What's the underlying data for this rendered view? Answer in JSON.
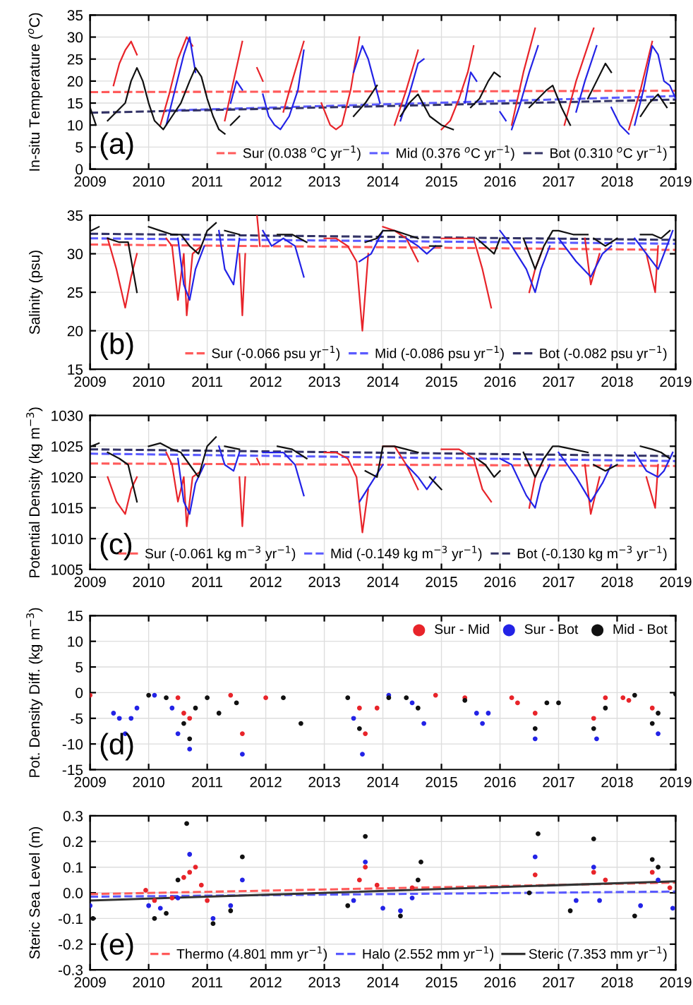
{
  "chart_data": [
    {
      "type": "line",
      "ylabel": "In-situ Temperature ($^{o}$C)",
      "xlim": [
        2009,
        2019
      ],
      "xticks": [
        2009,
        2010,
        2011,
        2012,
        2013,
        2014,
        2015,
        2016,
        2017,
        2018,
        2019
      ],
      "ylim": [
        0,
        35
      ],
      "yticks": [
        0,
        5,
        10,
        15,
        20,
        25,
        30,
        35
      ],
      "grid": true,
      "legend": "bottom right",
      "annotations": [
        "(a)"
      ],
      "series": [
        {
          "color": "#e8242a",
          "x": [
            2009.4,
            2009.5,
            2009.6,
            2009.7,
            2009.8,
            2010.0,
            2010.2,
            2010.35,
            2010.5,
            2010.65,
            2010.75,
            2011.0,
            2011.3,
            2011.45,
            2011.6,
            2011.75,
            2011.85,
            2011.95,
            2012.1,
            2012.3,
            2012.45,
            2012.65,
            2012.8,
            2012.95,
            2013.1,
            2013.2,
            2013.3,
            2013.45,
            2013.6,
            2013.8,
            2014.2,
            2014.4,
            2014.6,
            2014.8,
            2015.0,
            2015.15,
            2015.3,
            2015.45,
            2015.55,
            2015.8,
            2016.2,
            2016.4,
            2016.6,
            2016.8,
            2017.1,
            2017.3,
            2017.6,
            2017.8,
            2018.2,
            2018.4,
            2018.6
          ],
          "values": [
            19,
            24,
            27,
            29,
            26,
            null,
            10,
            17,
            25,
            30,
            28,
            null,
            11,
            20,
            29,
            null,
            23,
            20,
            null,
            13,
            20,
            29,
            null,
            15,
            10,
            9,
            10,
            18,
            30,
            null,
            10,
            18,
            27,
            null,
            9,
            11,
            16,
            22,
            28,
            null,
            10,
            22,
            32,
            null,
            10,
            20,
            32,
            null,
            9,
            18,
            29
          ]
        },
        {
          "color": "#2323e6",
          "x": [
            2010.3,
            2010.45,
            2010.6,
            2010.7,
            2010.8,
            2011.0,
            2011.4,
            2011.5,
            2011.6,
            2011.8,
            2011.95,
            2012.05,
            2012.15,
            2012.25,
            2012.4,
            2012.55,
            2012.65,
            2013.0,
            2013.5,
            2013.65,
            2013.75,
            2013.85,
            2013.95,
            2014.1,
            2014.3,
            2014.45,
            2014.6,
            2014.7,
            2015.0,
            2015.4,
            2015.5,
            2015.6,
            2015.9,
            2016.0,
            2016.1,
            2016.15,
            2016.2,
            2016.35,
            2016.5,
            2016.65,
            2017.0,
            2017.3,
            2017.45,
            2017.65,
            2017.8,
            2017.9,
            2018.05,
            2018.2,
            2018.25,
            2018.3,
            2018.45,
            2018.6,
            2018.7,
            2018.8,
            2018.9,
            2019.0
          ],
          "values": [
            10,
            18,
            26,
            30,
            22,
            null,
            15,
            20,
            18,
            null,
            17,
            12,
            10,
            9,
            12,
            18,
            27,
            null,
            22,
            28,
            25,
            20,
            15,
            null,
            11,
            17,
            24,
            25,
            null,
            15,
            22,
            20,
            null,
            13,
            11,
            null,
            9,
            15,
            22,
            28,
            null,
            13,
            20,
            28,
            null,
            14,
            10,
            8,
            null,
            10,
            18,
            28,
            26,
            20,
            19,
            16
          ]
        },
        {
          "color": "#111111",
          "x": [
            2009.0,
            2009.1,
            2009.2,
            2009.3,
            2009.45,
            2009.6,
            2009.7,
            2009.8,
            2009.9,
            2010.0,
            2010.1,
            2010.25,
            2010.4,
            2010.55,
            2010.7,
            2010.8,
            2010.9,
            2011.0,
            2011.1,
            2011.2,
            2011.3,
            2011.35,
            2011.4,
            2011.55,
            2013.0,
            2013.5,
            2013.7,
            2013.9,
            2014.1,
            2014.3,
            2014.45,
            2014.6,
            2014.8,
            2015.0,
            2015.2,
            2015.4,
            2015.5,
            2015.65,
            2015.8,
            2015.9,
            2016.0,
            2016.3,
            2016.5,
            2016.65,
            2016.8,
            2016.9,
            2017.05,
            2017.2,
            2017.4,
            2017.5,
            2017.65,
            2017.8,
            2017.9,
            2018.2,
            2018.4,
            2018.55,
            2018.7,
            2018.85
          ],
          "values": [
            14,
            10,
            null,
            11,
            13,
            15,
            20,
            23,
            20,
            15,
            11,
            9,
            12,
            15,
            20,
            23,
            21,
            16,
            12,
            9,
            8,
            null,
            10,
            12,
            null,
            12,
            15,
            19,
            null,
            12,
            15,
            17,
            12,
            10,
            9,
            null,
            14,
            16,
            20,
            22,
            21,
            null,
            14,
            16,
            18,
            19,
            14,
            10,
            null,
            16,
            20,
            24,
            22,
            null,
            12,
            15,
            17,
            14
          ]
        },
        {
          "name": "Sur (0.038 $^{o}$C yr$^{−1}$)",
          "color": "#ff5a5a",
          "line_style": "dashed",
          "x": [
            2009,
            2019
          ],
          "values": [
            17.5,
            17.8
          ]
        },
        {
          "name": "Mid (0.376 $^{o}$C yr$^{−1}$)",
          "color": "#5a5aff",
          "line_style": "dashed",
          "x": [
            2010.3,
            2019
          ],
          "values": [
            13.3,
            16.6
          ]
        },
        {
          "name": "Bot (0.310 $^{o}$C yr$^{−1}$)",
          "color": "#333366",
          "line_style": "dashed",
          "x": [
            2009,
            2019
          ],
          "values": [
            12.8,
            15.8
          ]
        }
      ]
    },
    {
      "type": "line",
      "ylabel": "Salinity (psu)",
      "xlim": [
        2009,
        2019
      ],
      "xticks": [
        2009,
        2010,
        2011,
        2012,
        2013,
        2014,
        2015,
        2016,
        2017,
        2018,
        2019
      ],
      "ylim": [
        15,
        35
      ],
      "yticks": [
        15,
        20,
        25,
        30,
        35
      ],
      "grid": true,
      "legend": "bottom right",
      "annotations": [
        "(b)"
      ],
      "series": [
        {
          "color": "#e8242a",
          "x": [
            2009.3,
            2009.45,
            2009.6,
            2009.7,
            2009.8,
            2010.1,
            2010.3,
            2010.4,
            2010.5,
            2010.6,
            2010.65,
            2010.75,
            2010.9,
            2011.4,
            2011.55,
            2011.6,
            2011.65,
            2011.75,
            2011.85,
            2011.9,
            2012.5,
            2013.0,
            2013.2,
            2013.4,
            2013.55,
            2013.65,
            2013.75,
            2013.9,
            2014.0,
            2014.2,
            2014.4,
            2014.6,
            2014.8,
            2015.0,
            2015.3,
            2015.55,
            2015.7,
            2015.85,
            2016.2,
            2016.5,
            2016.6,
            2016.7,
            2017.2,
            2017.45,
            2017.55,
            2017.7,
            2018.2,
            2018.5,
            2018.65,
            2018.7
          ],
          "values": [
            32,
            28,
            23,
            27,
            30,
            null,
            32,
            31,
            24,
            30,
            22,
            30,
            31,
            null,
            30,
            22,
            30,
            null,
            35,
            31,
            null,
            32,
            32,
            31,
            29,
            20,
            30,
            null,
            33.5,
            33,
            32,
            29,
            null,
            32,
            32,
            32,
            28,
            23,
            null,
            25,
            28,
            30,
            null,
            32,
            26,
            30,
            null,
            30,
            25,
            31
          ]
        },
        {
          "color": "#2323e6",
          "x": [
            2010.5,
            2010.6,
            2010.7,
            2010.8,
            2010.95,
            2011.1,
            2011.2,
            2011.3,
            2011.45,
            2011.55,
            2011.8,
            2011.95,
            2012.1,
            2012.3,
            2012.5,
            2012.65,
            2013.3,
            2013.6,
            2013.8,
            2014.0,
            2014.2,
            2014.4,
            2014.6,
            2014.75,
            2014.9,
            2015.5,
            2016.0,
            2016.2,
            2016.45,
            2016.6,
            2016.7,
            2016.85,
            2016.95,
            2017.0,
            2017.3,
            2017.55,
            2017.75,
            2017.9,
            2018.1,
            2018.3,
            2018.5,
            2018.7,
            2018.8,
            2018.95
          ],
          "values": [
            32,
            26,
            24,
            28,
            31,
            null,
            33,
            28,
            26,
            32,
            null,
            33,
            31,
            32,
            31,
            27,
            null,
            29,
            30,
            33,
            null,
            32,
            31,
            30,
            31,
            null,
            33,
            31,
            28,
            25,
            28,
            31,
            null,
            32,
            29,
            27,
            30,
            31,
            null,
            32,
            30,
            28,
            30,
            33
          ]
        },
        {
          "color": "#111111",
          "x": [
            2009.02,
            2009.15,
            2009.2,
            2009.3,
            2009.5,
            2009.65,
            2009.8,
            2009.9,
            2010.0,
            2010.2,
            2010.4,
            2010.55,
            2010.7,
            2010.85,
            2011.0,
            2011.15,
            2011.25,
            2011.3,
            2011.55,
            2012.0,
            2012.2,
            2012.45,
            2012.7,
            2013.5,
            2013.7,
            2013.9,
            2014.0,
            2014.2,
            2014.4,
            2014.6,
            2014.7,
            2014.8,
            2015.0,
            2015.4,
            2015.6,
            2015.75,
            2015.9,
            2016.0,
            2016.2,
            2016.4,
            2016.6,
            2016.75,
            2016.9,
            2017.0,
            2017.25,
            2017.5,
            2017.55,
            2017.6,
            2017.8,
            2018.0,
            2018.2,
            2018.4,
            2018.6,
            2018.75,
            2018.9
          ],
          "values": [
            33,
            33.5,
            null,
            32,
            31.5,
            31.5,
            25,
            null,
            33.5,
            33,
            32.5,
            32.5,
            31,
            30,
            33,
            34,
            null,
            33,
            32.5,
            null,
            32.5,
            32.5,
            31.5,
            null,
            31.5,
            32,
            33,
            33,
            32.5,
            32,
            null,
            31,
            31,
            null,
            32,
            31,
            30,
            32,
            null,
            32,
            28,
            31,
            33,
            33,
            32.5,
            32.5,
            null,
            32,
            31,
            32,
            null,
            32.5,
            32.5,
            32,
            33
          ]
        },
        {
          "name": "Sur (-0.066 psu yr$^{−1}$)",
          "color": "#ff5a5a",
          "line_style": "dashed",
          "x": [
            2009,
            2019
          ],
          "values": [
            31.2,
            30.5
          ]
        },
        {
          "name": "Mid (-0.086 psu yr$^{−1}$)",
          "color": "#5a5aff",
          "line_style": "dashed",
          "x": [
            2009,
            2019
          ],
          "values": [
            32.0,
            31.3
          ]
        },
        {
          "name": "Bot (-0.082 psu yr$^{−1}$)",
          "color": "#333366",
          "line_style": "dashed",
          "x": [
            2009,
            2019
          ],
          "values": [
            32.6,
            31.8
          ]
        }
      ]
    },
    {
      "type": "line",
      "ylabel": "Potential Density (kg m$^{−3}$)",
      "xlim": [
        2009,
        2019
      ],
      "xticks": [
        2009,
        2010,
        2011,
        2012,
        2013,
        2014,
        2015,
        2016,
        2017,
        2018,
        2019
      ],
      "ylim": [
        1005,
        1030
      ],
      "yticks": [
        1005,
        1010,
        1015,
        1020,
        1025,
        1030
      ],
      "grid": true,
      "legend": "bottom right",
      "annotations": [
        "(c)"
      ],
      "series": [
        {
          "color": "#e8242a",
          "x": [
            2009.3,
            2009.45,
            2009.6,
            2009.7,
            2009.8,
            2010.1,
            2010.3,
            2010.4,
            2010.5,
            2010.6,
            2010.65,
            2010.75,
            2010.9,
            2011.4,
            2011.55,
            2011.6,
            2011.65,
            2011.75,
            2011.85,
            2011.9,
            2012.5,
            2013.0,
            2013.2,
            2013.4,
            2013.55,
            2013.65,
            2013.75,
            2013.9,
            2014.0,
            2014.2,
            2014.4,
            2014.6,
            2014.8,
            2015.0,
            2015.3,
            2015.55,
            2015.7,
            2015.85,
            2016.2,
            2016.5,
            2016.6,
            2016.7,
            2017.2,
            2017.45,
            2017.55,
            2017.7,
            2018.2,
            2018.5,
            2018.65,
            2018.7
          ],
          "values": [
            1020,
            1016,
            1014,
            1018,
            1020,
            null,
            1024,
            1022,
            1016,
            1020,
            1012,
            1020,
            1021,
            null,
            1020,
            1012,
            1020,
            null,
            1023,
            1022,
            null,
            1024,
            1024,
            1023,
            1020,
            1011,
            1018,
            null,
            1025,
            1025,
            1022,
            1018,
            null,
            1024.5,
            1024.5,
            1023,
            1018,
            1016,
            null,
            1015,
            1020,
            1022,
            null,
            1022,
            1014,
            1020,
            null,
            1020,
            1015,
            1022
          ]
        },
        {
          "color": "#2323e6",
          "x": [
            2010.5,
            2010.6,
            2010.7,
            2010.8,
            2010.95,
            2011.1,
            2011.2,
            2011.3,
            2011.45,
            2011.55,
            2011.8,
            2011.95,
            2012.1,
            2012.3,
            2012.5,
            2012.65,
            2013.3,
            2013.6,
            2013.8,
            2014.0,
            2014.2,
            2014.4,
            2014.6,
            2014.75,
            2014.9,
            2015.5,
            2016.0,
            2016.2,
            2016.45,
            2016.6,
            2016.7,
            2016.85,
            2016.95,
            2017.0,
            2017.3,
            2017.55,
            2017.75,
            2017.9,
            2018.1,
            2018.3,
            2018.5,
            2018.7,
            2018.8,
            2018.95
          ],
          "values": [
            1023,
            1016,
            1014,
            1019,
            1022,
            null,
            1025,
            1022,
            1021,
            1024,
            null,
            1024,
            1024,
            1024,
            1022,
            1017,
            null,
            1016,
            1019,
            1022,
            null,
            1022,
            1020,
            1018,
            1020,
            null,
            1023,
            1022,
            1017,
            1015,
            1019,
            1022,
            null,
            1024,
            1020,
            1016,
            1019,
            1022,
            null,
            1024,
            1021,
            1020,
            1021,
            1024
          ]
        },
        {
          "color": "#111111",
          "x": [
            2009.02,
            2009.15,
            2009.2,
            2009.3,
            2009.5,
            2009.65,
            2009.8,
            2009.9,
            2010.0,
            2010.2,
            2010.4,
            2010.55,
            2010.7,
            2010.85,
            2011.0,
            2011.15,
            2011.25,
            2011.3,
            2011.55,
            2012.0,
            2012.2,
            2012.45,
            2012.7,
            2013.5,
            2013.7,
            2013.9,
            2014.0,
            2014.2,
            2014.4,
            2014.6,
            2014.7,
            2014.8,
            2015.0,
            2015.4,
            2015.6,
            2015.75,
            2015.9,
            2016.0,
            2016.2,
            2016.4,
            2016.6,
            2016.75,
            2016.9,
            2017.0,
            2017.25,
            2017.5,
            2017.55,
            2017.6,
            2017.8,
            2018.0,
            2018.2,
            2018.4,
            2018.6,
            2018.75,
            2018.9
          ],
          "values": [
            1025,
            1025.5,
            null,
            1024,
            1023,
            1022,
            1016,
            null,
            1025,
            1025.5,
            1024.5,
            1024,
            1022,
            1020,
            1025,
            1026.5,
            null,
            1025,
            1024.5,
            null,
            1025,
            1024.5,
            1023,
            null,
            1021,
            1020,
            1025,
            1025,
            1024.5,
            1024,
            null,
            1020,
            1018,
            null,
            1023,
            1022,
            1020,
            1021,
            null,
            1024,
            1020,
            1023,
            1025,
            1025,
            1024.5,
            1024,
            null,
            1022,
            1021,
            1022,
            null,
            1025,
            1024.5,
            1024,
            1023
          ]
        },
        {
          "name": "Sur (-0.061 kg m$^{−3}$ yr$^{−1}$)",
          "color": "#ff5a5a",
          "line_style": "dashed",
          "x": [
            2009,
            2019
          ],
          "values": [
            1022.2,
            1021.8
          ]
        },
        {
          "name": "Mid (-0.149 kg m$^{−3}$ yr$^{−1}$)",
          "color": "#5a5aff",
          "line_style": "dashed",
          "x": [
            2009,
            2019
          ],
          "values": [
            1023.8,
            1022.6
          ]
        },
        {
          "name": "Bot (-0.130 kg m$^{−3}$ yr$^{−1}$)",
          "color": "#333366",
          "line_style": "dashed",
          "x": [
            2009,
            2019
          ],
          "values": [
            1024.5,
            1023.4
          ]
        }
      ]
    },
    {
      "type": "scatter",
      "marker": "circle",
      "ylabel": "Pot. Density Diff. (kg m$^{−3}$)",
      "xlim": [
        2009,
        2019
      ],
      "xticks": [
        2009,
        2010,
        2011,
        2012,
        2013,
        2014,
        2015,
        2016,
        2017,
        2018,
        2019
      ],
      "ylim": [
        -15,
        15
      ],
      "yticks": [
        -15,
        -10,
        -5,
        0,
        5,
        10,
        15
      ],
      "grid": true,
      "legend": "top right",
      "annotations": [
        "(d)"
      ],
      "series": [
        {
          "name": "Sur - Mid",
          "color": "#e8242a",
          "x": [
            2009.0,
            2010.5,
            2010.6,
            2010.7,
            2011.4,
            2011.6,
            2012.0,
            2013.6,
            2013.7,
            2013.9,
            2014.9,
            2015.4,
            2016.2,
            2016.3,
            2016.6,
            2017.6,
            2017.8,
            2018.1,
            2018.2,
            2018.6
          ],
          "values": [
            -0.5,
            -1,
            -4,
            -5,
            -0.5,
            -8,
            -1,
            -3,
            -8,
            -3,
            -0.5,
            -1,
            -1,
            -2,
            -4,
            -5,
            -1,
            -1,
            -1.5,
            -3
          ]
        },
        {
          "name": "Sur - Bot",
          "color": "#2323e6",
          "x": [
            2009.4,
            2009.5,
            2009.6,
            2009.7,
            2009.8,
            2010.1,
            2010.4,
            2010.5,
            2010.7,
            2011.6,
            2013.5,
            2013.65,
            2014.1,
            2014.5,
            2014.7,
            2015.6,
            2015.7,
            2015.8,
            2016.6,
            2017.65,
            2018.7
          ],
          "values": [
            -4,
            -5,
            -8,
            -5,
            -3,
            -0.5,
            -3,
            -8,
            -11,
            -12,
            -5,
            -12,
            -0.5,
            -2,
            -6,
            -4,
            -6,
            -4,
            -9,
            -9,
            -8
          ]
        },
        {
          "name": "Mid - Bot",
          "color": "#111111",
          "x": [
            2010.0,
            2010.3,
            2010.6,
            2010.7,
            2010.8,
            2011.0,
            2011.2,
            2011.5,
            2012.3,
            2012.6,
            2013.4,
            2013.6,
            2014.1,
            2014.4,
            2014.6,
            2015.4,
            2016.6,
            2016.8,
            2017.0,
            2017.6,
            2017.8,
            2018.3,
            2018.6,
            2018.7,
            2019.0
          ],
          "values": [
            -0.5,
            -1,
            -6,
            -9,
            -3,
            -1,
            -4,
            -2,
            -1,
            -6,
            -1,
            -7,
            -1,
            -1,
            -3,
            -1.5,
            -7,
            -2,
            -2,
            -7,
            -3,
            -0.5,
            -6,
            -4,
            -0.3
          ]
        }
      ]
    },
    {
      "type": "line",
      "ylabel": "Steric Sea Level (m)",
      "xlim": [
        2009,
        2019
      ],
      "xticks": [
        2009,
        2010,
        2011,
        2012,
        2013,
        2014,
        2015,
        2016,
        2017,
        2018,
        2019
      ],
      "ylim": [
        -0.3,
        0.3
      ],
      "yticks": [
        -0.3,
        -0.2,
        -0.1,
        {
          "value": 0,
          "label": "0.0"
        },
        0.1,
        0.2,
        0.3
      ],
      "grid": true,
      "legend": "bottom right",
      "annotations": [
        "(e)"
      ],
      "series": [
        {
          "type": "scatter",
          "color": "#e8242a",
          "x": [
            2009.95,
            2010.1,
            2010.4,
            2010.6,
            2010.7,
            2010.8,
            2010.9,
            2011.0,
            2013.6,
            2013.7,
            2013.9,
            2014.5,
            2016.6,
            2017.6,
            2017.8,
            2018.6,
            2018.9
          ],
          "values": [
            0.01,
            -0.03,
            -0.02,
            0.06,
            0.08,
            0.1,
            0.03,
            -0.03,
            0.05,
            0.1,
            0.03,
            0.02,
            0.07,
            0.08,
            0.05,
            0.08,
            0.02
          ]
        },
        {
          "type": "scatter",
          "color": "#2323e6",
          "x": [
            2009.0,
            2010.0,
            2010.2,
            2010.5,
            2010.7,
            2011.1,
            2011.4,
            2011.6,
            2013.5,
            2013.7,
            2014.0,
            2014.3,
            2014.5,
            2016.6,
            2017.3,
            2017.6,
            2017.7,
            2018.4,
            2018.7,
            2018.95
          ],
          "values": [
            -0.05,
            -0.05,
            -0.06,
            -0.02,
            0.15,
            -0.1,
            -0.05,
            0.05,
            -0.03,
            0.12,
            -0.06,
            -0.07,
            -0.02,
            0.14,
            -0.03,
            0.1,
            -0.03,
            -0.05,
            0.05,
            -0.06
          ]
        },
        {
          "type": "scatter",
          "color": "#111111",
          "x": [
            2009.05,
            2010.1,
            2010.3,
            2010.5,
            2010.65,
            2011.1,
            2011.4,
            2011.6,
            2013.4,
            2013.7,
            2014.3,
            2014.6,
            2014.65,
            2016.5,
            2016.65,
            2017.2,
            2017.6,
            2018.3,
            2018.6,
            2018.7
          ],
          "values": [
            -0.1,
            -0.1,
            -0.08,
            0.05,
            0.27,
            -0.12,
            -0.07,
            0.14,
            -0.05,
            0.22,
            -0.09,
            0.05,
            0.12,
            0.0,
            0.23,
            -0.07,
            0.21,
            -0.09,
            0.13,
            0.1
          ]
        },
        {
          "name": "Thermo (4.801 mm yr$^{−1}$)",
          "color": "#ff5a5a",
          "line_style": "dashed",
          "x": [
            2009,
            2019
          ],
          "values": [
            -0.005,
            0.04
          ]
        },
        {
          "name": "Halo (2.552 mm yr$^{−1}$)",
          "color": "#5a5aff",
          "line_style": "dashed",
          "x": [
            2009,
            2019
          ],
          "values": [
            -0.015,
            0.005
          ]
        },
        {
          "name": "Steric (7.353 mm yr$^{−1}$)",
          "color": "#333333",
          "line_style": "solid",
          "x": [
            2009,
            2019
          ],
          "values": [
            -0.03,
            0.045
          ]
        }
      ]
    }
  ]
}
